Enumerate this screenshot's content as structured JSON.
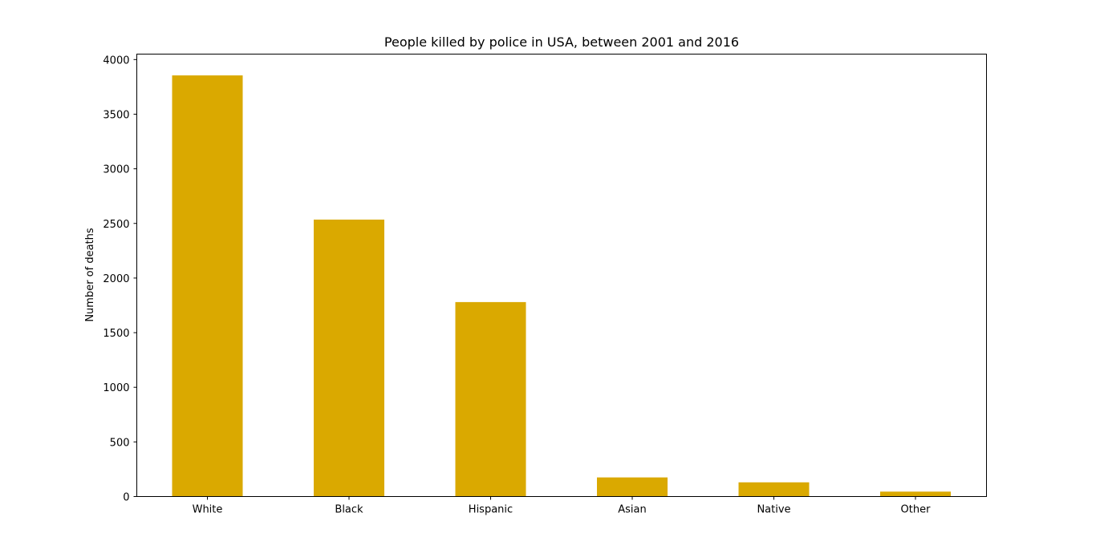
{
  "chart_data": {
    "type": "bar",
    "title": "People killed by police in USA, between 2001 and 2016",
    "xlabel": "",
    "ylabel": "Number of deaths",
    "categories": [
      "White",
      "Black",
      "Hispanic",
      "Asian",
      "Native",
      "Other"
    ],
    "values": [
      3855,
      2535,
      1780,
      175,
      130,
      45
    ],
    "ylim": [
      0,
      4050
    ],
    "yticks": [
      0,
      500,
      1000,
      1500,
      2000,
      2500,
      3000,
      3500,
      4000
    ],
    "bar_color": "#DAA900",
    "grid": false,
    "legend": "none"
  }
}
